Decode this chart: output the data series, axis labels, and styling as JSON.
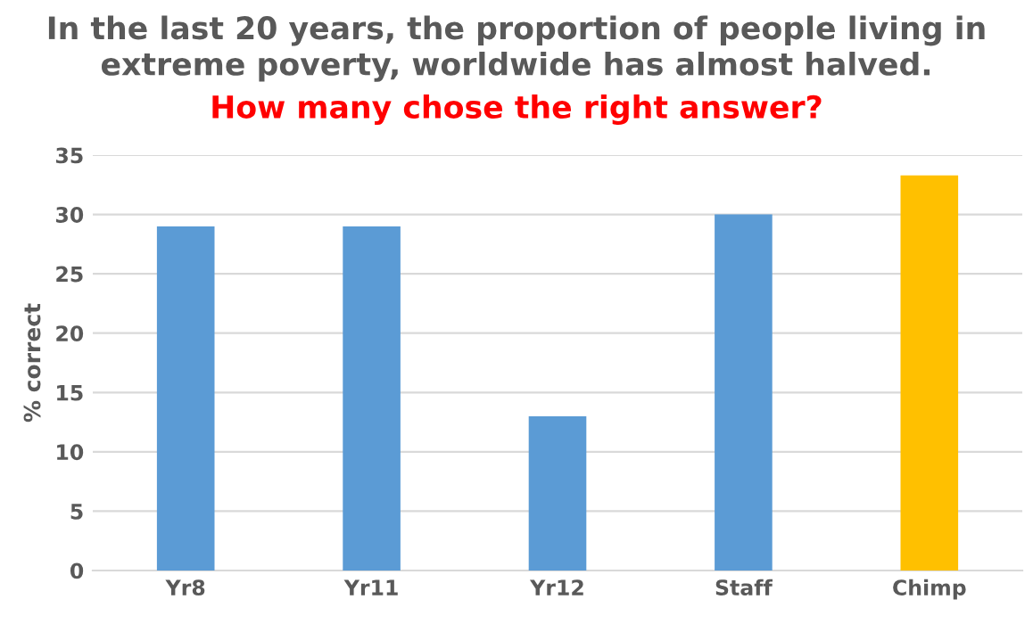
{
  "chart_data": {
    "type": "bar",
    "title": "In the last 20 years, the proportion of people living in\nextreme poverty, worldwide has almost halved.",
    "subtitle": "How many chose the right answer?",
    "ylabel": "% correct",
    "categories": [
      "Yr8",
      "Yr11",
      "Yr12",
      "Staff",
      "Chimp"
    ],
    "values": [
      29,
      29,
      13,
      30,
      33.3
    ],
    "colors": [
      "#5b9bd5",
      "#5b9bd5",
      "#5b9bd5",
      "#5b9bd5",
      "#ffc000"
    ],
    "ylim": [
      0,
      35
    ],
    "yticks": [
      0,
      5,
      10,
      15,
      20,
      25,
      30,
      35
    ],
    "grid": "y",
    "legend": false
  }
}
